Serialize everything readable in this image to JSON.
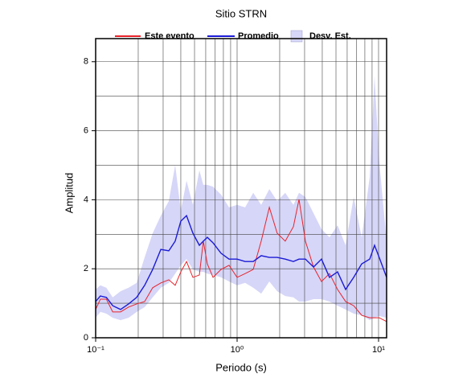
{
  "chart_data": {
    "type": "line",
    "title": "Sitio STRN",
    "xlabel": "Periodo (s)",
    "ylabel": "Amplitud",
    "xscale": "log",
    "xlim": [
      0.1,
      11.4
    ],
    "ylim": [
      0,
      8.67
    ],
    "xticks": [
      {
        "value": 0.1,
        "label": "10⁻¹"
      },
      {
        "value": 1,
        "label": "10⁰"
      },
      {
        "value": 10,
        "label": "10¹"
      }
    ],
    "xminor": [
      0.2,
      0.3,
      0.4,
      0.5,
      0.6,
      0.7,
      0.8,
      0.9,
      2,
      3,
      4,
      5,
      6,
      7,
      8,
      9
    ],
    "yticks": [
      0,
      2,
      4,
      6,
      8
    ],
    "yminor": [
      1,
      3,
      5,
      7
    ],
    "grid": true,
    "x": [
      0.1,
      0.108,
      0.119,
      0.132,
      0.15,
      0.171,
      0.195,
      0.222,
      0.253,
      0.289,
      0.329,
      0.365,
      0.4,
      0.439,
      0.487,
      0.541,
      0.577,
      0.616,
      0.676,
      0.77,
      0.877,
      1.0,
      1.14,
      1.3,
      1.48,
      1.69,
      1.92,
      2.19,
      2.5,
      2.74,
      3.04,
      3.47,
      3.95,
      4.5,
      5.13,
      5.85,
      6.67,
      7.6,
      8.66,
      9.37,
      10.1,
      11.4
    ],
    "band": {
      "name": "Desv. Est.",
      "color": "#d6d6f8",
      "upper": [
        1.4,
        1.52,
        1.45,
        1.17,
        1.35,
        1.45,
        1.59,
        2.33,
        3.03,
        3.54,
        3.96,
        5.01,
        3.68,
        4.55,
        3.85,
        4.85,
        4.43,
        4.43,
        4.38,
        4.15,
        3.78,
        3.85,
        3.78,
        4.2,
        3.85,
        4.31,
        3.96,
        4.2,
        3.85,
        4.2,
        4.08,
        3.61,
        3.15,
        2.91,
        3.26,
        2.68,
        4.08,
        2.91,
        4.66,
        7.58,
        5.13,
        2.8
      ],
      "lower": [
        0.58,
        0.75,
        0.7,
        0.58,
        0.51,
        0.58,
        0.75,
        0.89,
        1.17,
        1.45,
        1.59,
        1.86,
        2.1,
        2.28,
        1.98,
        1.91,
        1.91,
        1.86,
        1.82,
        1.75,
        1.63,
        1.52,
        1.59,
        1.45,
        1.28,
        1.63,
        1.35,
        1.21,
        1.17,
        1.05,
        1.05,
        1.12,
        1.12,
        1.05,
        0.93,
        0.82,
        0.7,
        0.65,
        0.51,
        0.58,
        0.63,
        0.58
      ]
    },
    "series": [
      {
        "name": "Este evento",
        "color": "#e8222a",
        "values": [
          0.82,
          1.12,
          1.12,
          0.75,
          0.75,
          0.89,
          0.98,
          1.05,
          1.45,
          1.59,
          1.68,
          1.52,
          1.91,
          2.21,
          1.75,
          1.82,
          2.8,
          2.14,
          1.75,
          1.98,
          2.1,
          1.75,
          1.86,
          1.98,
          2.8,
          3.78,
          3.03,
          2.8,
          3.22,
          4.01,
          2.8,
          2.05,
          1.63,
          1.86,
          1.4,
          1.05,
          0.93,
          0.65,
          0.58,
          0.58,
          0.58,
          0.47
        ]
      },
      {
        "name": "Promedio",
        "color": "#1b1bd6",
        "values": [
          1.05,
          1.21,
          1.17,
          0.93,
          0.82,
          0.98,
          1.17,
          1.52,
          1.98,
          2.56,
          2.52,
          2.8,
          3.38,
          3.54,
          3.03,
          2.68,
          2.8,
          2.91,
          2.75,
          2.45,
          2.28,
          2.28,
          2.21,
          2.21,
          2.38,
          2.33,
          2.33,
          2.28,
          2.21,
          2.28,
          2.28,
          2.05,
          2.28,
          1.75,
          1.91,
          1.4,
          1.75,
          2.14,
          2.28,
          2.68,
          2.33,
          1.75
        ]
      }
    ]
  }
}
